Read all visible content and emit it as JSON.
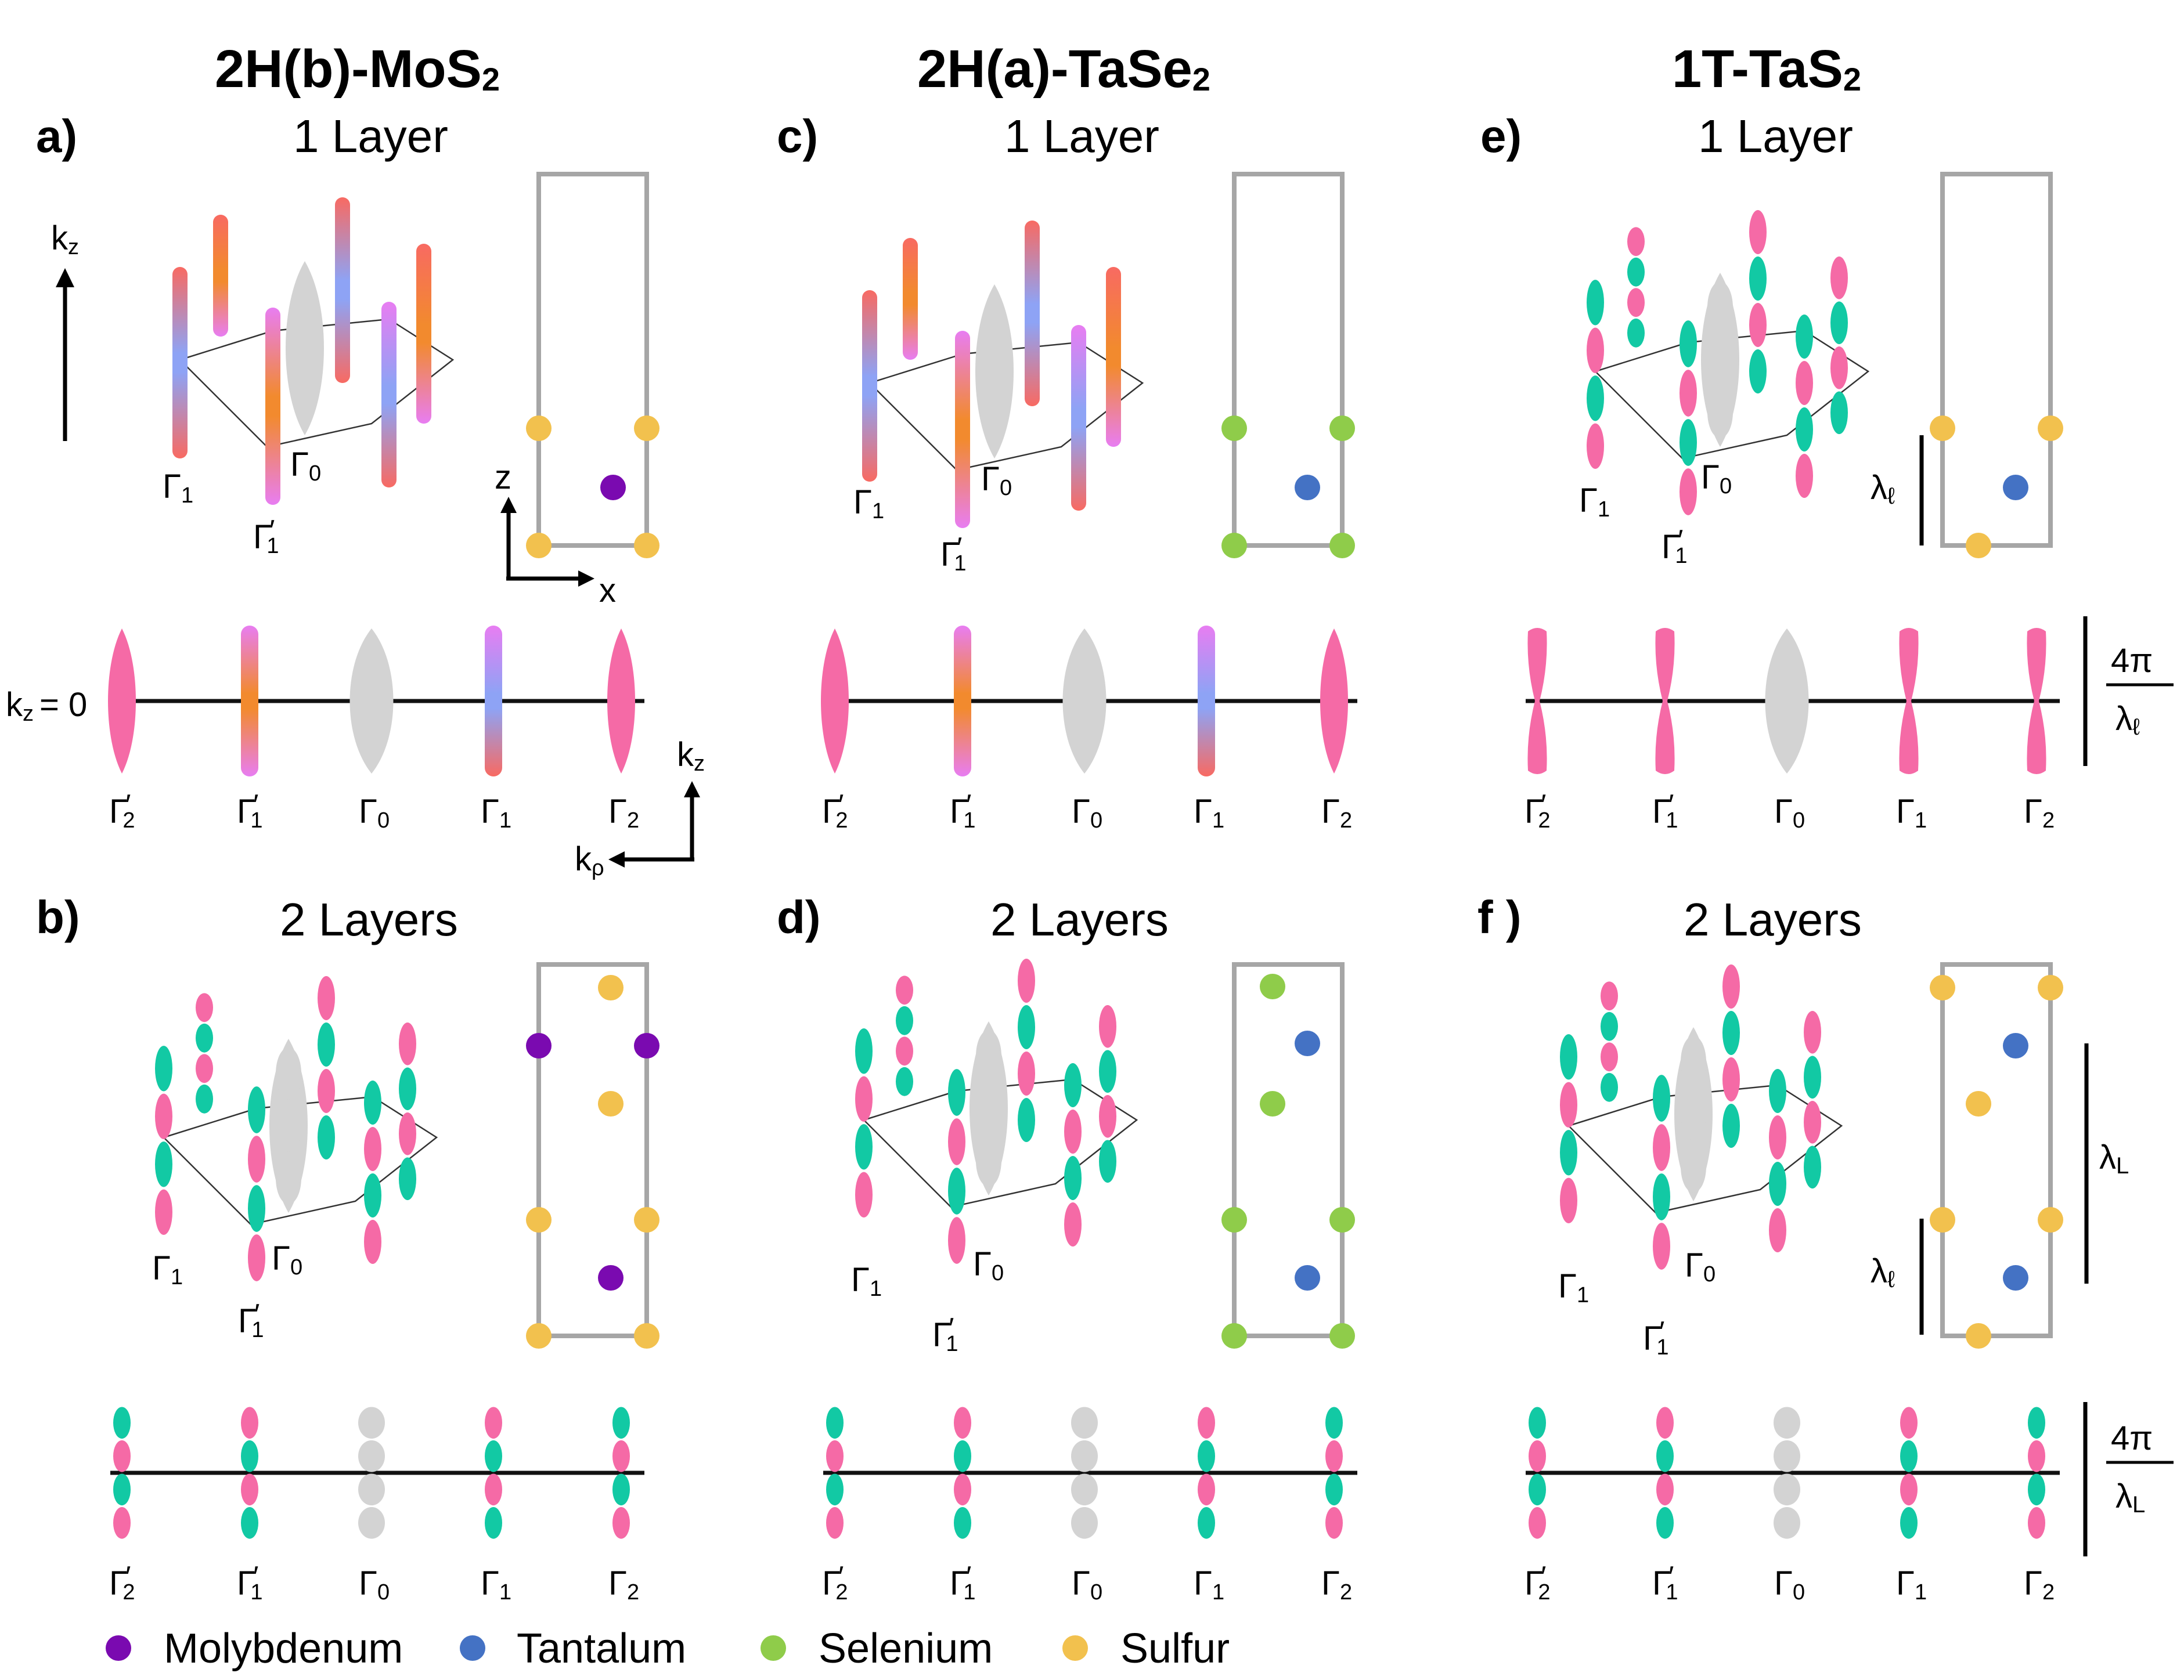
{
  "colors": {
    "molybdenum": "#7a0ab0",
    "tantalum": "#4472c4",
    "selenium": "#8fcc4a",
    "sulfur": "#f2c14e",
    "pink": "#f56aa6",
    "teal": "#12c9a4",
    "grey": "#d3d3d3",
    "orange": "#f28a2e",
    "magenta": "#e87df2",
    "salmon": "#f86a62",
    "periwinkle": "#8ea3f5",
    "frame": "#a6a6a6"
  },
  "columns": [
    {
      "title": "2H(b)-MoS",
      "subscript": "2",
      "panel_top": {
        "letter": "a)",
        "title": "1 Layer"
      },
      "panel_bottom": {
        "letter": "b)",
        "title": "2 Layers"
      }
    },
    {
      "title": "2H(a)-TaSe",
      "subscript": "2",
      "panel_top": {
        "letter": "c)",
        "title": "1 Layer"
      },
      "panel_bottom": {
        "letter": "d)",
        "title": "2 Layers"
      }
    },
    {
      "title": "1T-TaS",
      "subscript": "2",
      "panel_top": {
        "letter": "e)",
        "title": "1 Layer"
      },
      "panel_bottom": {
        "letter": "f )",
        "title": "2 Layers"
      }
    }
  ],
  "labels": {
    "gamma": "Γ",
    "prime": "′",
    "sub_0": "0",
    "sub_1": "1",
    "sub_2": "2",
    "kz_axis": "k",
    "kz_sub": "z",
    "kp_sub": "ρ",
    "z_axis": "z",
    "x_axis": "x",
    "kz_zero": "= 0",
    "lambda": "λ",
    "lambda_l_sub": "ℓ",
    "lambda_L_sub": "L",
    "four_pi": "4π"
  },
  "legend": [
    {
      "label": "Molybdenum",
      "color": "#7a0ab0"
    },
    {
      "label": "Tantalum",
      "color": "#4472c4"
    },
    {
      "label": "Selenium",
      "color": "#8fcc4a"
    },
    {
      "label": "Sulfur",
      "color": "#f2c14e"
    }
  ]
}
